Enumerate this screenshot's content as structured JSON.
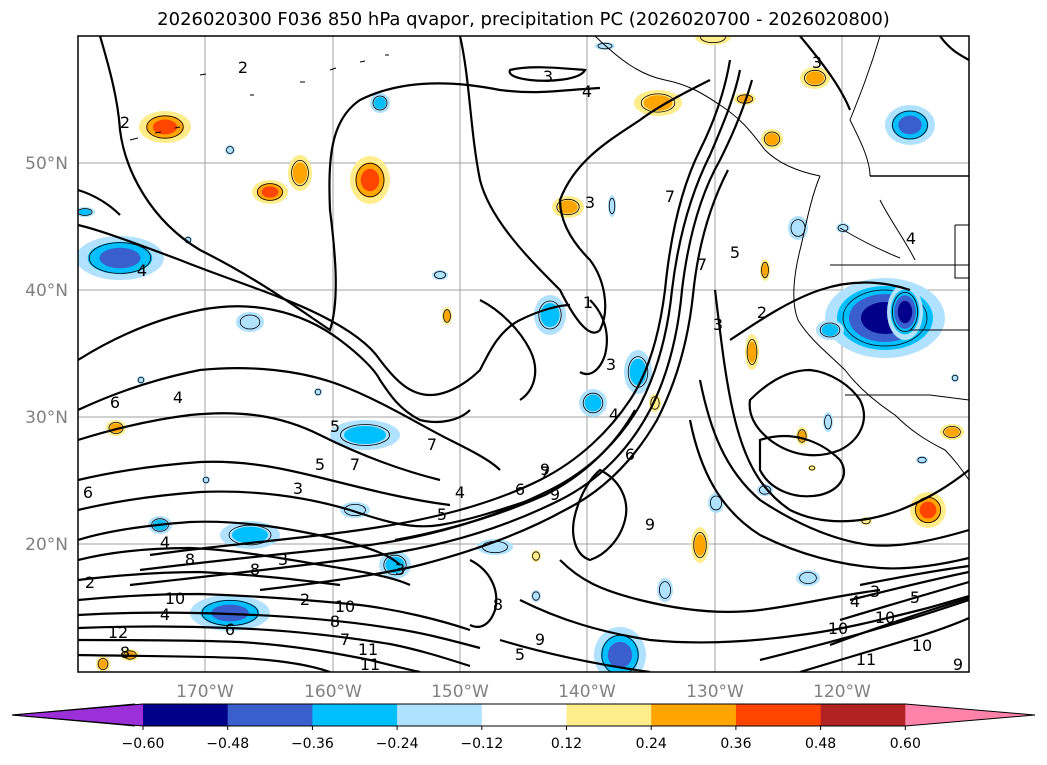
{
  "title": "2026020300 F036 850 hPa qvapor, precipitation PC (2026020700 - 2026020800)",
  "lat_labels": [
    "50°N",
    "40°N",
    "30°N",
    "20°N"
  ],
  "lon_labels": [
    "170°W",
    "160°W",
    "150°W",
    "140°W",
    "130°W",
    "120°W"
  ],
  "colorbar": {
    "colors": [
      "#9b30d9",
      "#00008b",
      "#3a5fcd",
      "#00bfff",
      "#b0e2ff",
      "#ffffff",
      "#ffec8b",
      "#ffa500",
      "#ff4500",
      "#b22222",
      "#ff82ab"
    ],
    "labels": [
      "−0.60",
      "−0.48",
      "−0.36",
      "−0.24",
      "−0.12",
      "0.12",
      "0.24",
      "0.36",
      "0.48",
      "0.60"
    ]
  },
  "contour_labels": [
    "2",
    "2",
    "3",
    "4",
    "3",
    "3",
    "4",
    "7",
    "7",
    "5",
    "3",
    "2",
    "1",
    "3",
    "4",
    "5",
    "7",
    "7",
    "3",
    "5",
    "4",
    "6",
    "7",
    "6",
    "6",
    "4",
    "4",
    "8",
    "8",
    "3",
    "3",
    "2",
    "4",
    "2",
    "8",
    "10",
    "9",
    "7",
    "6",
    "5",
    "5",
    "9",
    "4",
    "10",
    "11",
    "11",
    "12",
    "6",
    "9",
    "10",
    "3",
    "4",
    "5",
    "10",
    "9",
    "11",
    "10",
    "8",
    "8",
    "9"
  ],
  "shading": {
    "positive_colors": [
      "#ffec8b",
      "#ffa500",
      "#ff4500"
    ],
    "negative_colors": [
      "#b0e2ff",
      "#00bfff",
      "#3a5fcd",
      "#00008b"
    ]
  }
}
